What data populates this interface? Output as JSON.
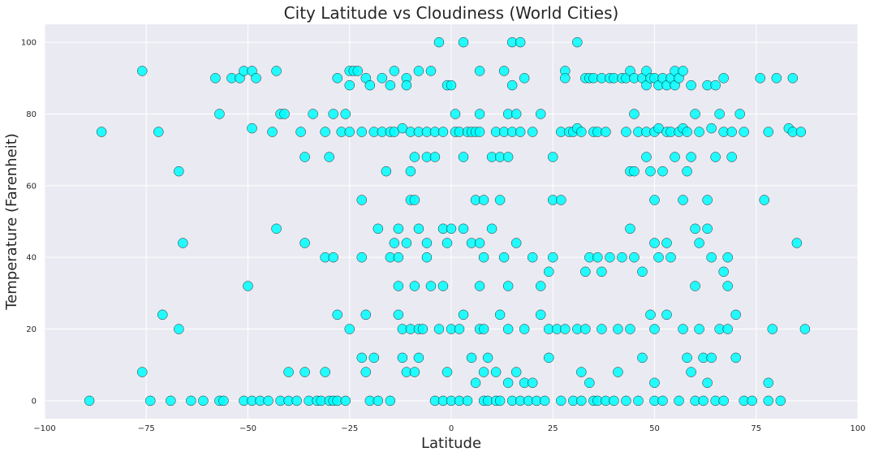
{
  "chart_data": {
    "type": "scatter",
    "title": "City Latitude vs Cloudiness (World Cities)",
    "xlabel": "Latitude",
    "ylabel": "Temperature (Farenheit)",
    "xlim": [
      -100,
      100
    ],
    "ylim": [
      -5,
      105
    ],
    "xticks": [
      -100,
      -75,
      -50,
      -25,
      0,
      25,
      50,
      75,
      100
    ],
    "yticks": [
      0,
      20,
      40,
      60,
      80,
      100
    ],
    "grid": true,
    "marker_color": "#00ffff",
    "marker_edge_color": "#000000",
    "background_color": "#eaeaf2",
    "points": [
      [
        -89,
        0
      ],
      [
        -86,
        75
      ],
      [
        -76,
        92
      ],
      [
        -76,
        8
      ],
      [
        -74,
        0
      ],
      [
        -72,
        75
      ],
      [
        -71,
        24
      ],
      [
        -69,
        0
      ],
      [
        -67,
        64
      ],
      [
        -67,
        20
      ],
      [
        -66,
        44
      ],
      [
        -64,
        0
      ],
      [
        -61,
        0
      ],
      [
        -58,
        90
      ],
      [
        -57,
        80
      ],
      [
        -57,
        0
      ],
      [
        -56,
        0
      ],
      [
        -54,
        90
      ],
      [
        -52,
        90
      ],
      [
        -51,
        92
      ],
      [
        -51,
        0
      ],
      [
        -50,
        32
      ],
      [
        -49,
        92
      ],
      [
        -49,
        76
      ],
      [
        -49,
        0
      ],
      [
        -48,
        90
      ],
      [
        -47,
        0
      ],
      [
        -45,
        0
      ],
      [
        -44,
        75
      ],
      [
        -43,
        92
      ],
      [
        -43,
        48
      ],
      [
        -42,
        80
      ],
      [
        -42,
        0
      ],
      [
        -41,
        80
      ],
      [
        -40,
        8
      ],
      [
        -40,
        0
      ],
      [
        -38,
        0
      ],
      [
        -37,
        75
      ],
      [
        -36,
        68
      ],
      [
        -36,
        44
      ],
      [
        -36,
        8
      ],
      [
        -35,
        0
      ],
      [
        -34,
        80
      ],
      [
        -33,
        0
      ],
      [
        -32,
        0
      ],
      [
        -31,
        75
      ],
      [
        -31,
        40
      ],
      [
        -31,
        8
      ],
      [
        -30,
        68
      ],
      [
        -30,
        0
      ],
      [
        -29,
        80
      ],
      [
        -29,
        40
      ],
      [
        -29,
        0
      ],
      [
        -28,
        90
      ],
      [
        -28,
        24
      ],
      [
        -28,
        0
      ],
      [
        -27,
        75
      ],
      [
        -26,
        80
      ],
      [
        -26,
        0
      ],
      [
        -25,
        92
      ],
      [
        -25,
        88
      ],
      [
        -25,
        75
      ],
      [
        -25,
        20
      ],
      [
        -24,
        92
      ],
      [
        -23,
        92
      ],
      [
        -22,
        75
      ],
      [
        -22,
        56
      ],
      [
        -22,
        40
      ],
      [
        -22,
        12
      ],
      [
        -21,
        90
      ],
      [
        -21,
        8
      ],
      [
        -21,
        24
      ],
      [
        -20,
        88
      ],
      [
        -20,
        0
      ],
      [
        -19,
        75
      ],
      [
        -19,
        12
      ],
      [
        -18,
        48
      ],
      [
        -18,
        0
      ],
      [
        -17,
        90
      ],
      [
        -17,
        75
      ],
      [
        -16,
        64
      ],
      [
        -15,
        88
      ],
      [
        -15,
        75
      ],
      [
        -15,
        40
      ],
      [
        -15,
        0
      ],
      [
        -14,
        92
      ],
      [
        -14,
        44
      ],
      [
        -14,
        75
      ],
      [
        -13,
        48
      ],
      [
        -13,
        40
      ],
      [
        -13,
        32
      ],
      [
        -13,
        24
      ],
      [
        -12,
        76
      ],
      [
        -12,
        20
      ],
      [
        -12,
        12
      ],
      [
        -11,
        90
      ],
      [
        -11,
        88
      ],
      [
        -11,
        44
      ],
      [
        -11,
        8
      ],
      [
        -10,
        75
      ],
      [
        -10,
        64
      ],
      [
        -10,
        56
      ],
      [
        -10,
        20
      ],
      [
        -9,
        68
      ],
      [
        -9,
        56
      ],
      [
        -9,
        32
      ],
      [
        -9,
        8
      ],
      [
        -8,
        92
      ],
      [
        -8,
        75
      ],
      [
        -8,
        48
      ],
      [
        -8,
        20
      ],
      [
        -8,
        12
      ],
      [
        -7,
        20
      ],
      [
        -6,
        75
      ],
      [
        -6,
        68
      ],
      [
        -6,
        44
      ],
      [
        -6,
        40
      ],
      [
        -5,
        92
      ],
      [
        -5,
        32
      ],
      [
        -4,
        75
      ],
      [
        -4,
        68
      ],
      [
        -4,
        0
      ],
      [
        -3,
        100
      ],
      [
        -3,
        20
      ],
      [
        -2,
        75
      ],
      [
        -2,
        48
      ],
      [
        -2,
        32
      ],
      [
        -2,
        0
      ],
      [
        -1,
        88
      ],
      [
        -1,
        44
      ],
      [
        -1,
        8
      ],
      [
        0,
        88
      ],
      [
        0,
        48
      ],
      [
        0,
        20
      ],
      [
        0,
        0
      ],
      [
        1,
        80
      ],
      [
        1,
        75
      ],
      [
        2,
        75
      ],
      [
        2,
        20
      ],
      [
        2,
        0
      ],
      [
        3,
        100
      ],
      [
        3,
        68
      ],
      [
        3,
        48
      ],
      [
        3,
        24
      ],
      [
        4,
        75
      ],
      [
        4,
        0
      ],
      [
        5,
        75
      ],
      [
        5,
        44
      ],
      [
        5,
        12
      ],
      [
        6,
        75
      ],
      [
        6,
        56
      ],
      [
        6,
        5
      ],
      [
        7,
        92
      ],
      [
        7,
        80
      ],
      [
        7,
        75
      ],
      [
        7,
        44
      ],
      [
        7,
        32
      ],
      [
        7,
        20
      ],
      [
        8,
        56
      ],
      [
        8,
        40
      ],
      [
        8,
        20
      ],
      [
        8,
        8
      ],
      [
        8,
        0
      ],
      [
        9,
        12
      ],
      [
        9,
        0
      ],
      [
        10,
        68
      ],
      [
        10,
        48
      ],
      [
        11,
        75
      ],
      [
        11,
        8
      ],
      [
        11,
        0
      ],
      [
        12,
        68
      ],
      [
        12,
        56
      ],
      [
        12,
        24
      ],
      [
        12,
        0
      ],
      [
        13,
        92
      ],
      [
        13,
        75
      ],
      [
        13,
        40
      ],
      [
        14,
        80
      ],
      [
        14,
        68
      ],
      [
        14,
        32
      ],
      [
        14,
        20
      ],
      [
        14,
        5
      ],
      [
        15,
        100
      ],
      [
        15,
        88
      ],
      [
        15,
        75
      ],
      [
        15,
        0
      ],
      [
        16,
        80
      ],
      [
        16,
        44
      ],
      [
        16,
        8
      ],
      [
        17,
        100
      ],
      [
        17,
        75
      ],
      [
        17,
        0
      ],
      [
        18,
        90
      ],
      [
        18,
        20
      ],
      [
        18,
        5
      ],
      [
        19,
        0
      ],
      [
        20,
        75
      ],
      [
        20,
        40
      ],
      [
        20,
        5
      ],
      [
        21,
        0
      ],
      [
        22,
        80
      ],
      [
        22,
        32
      ],
      [
        22,
        24
      ],
      [
        23,
        0
      ],
      [
        24,
        36
      ],
      [
        24,
        20
      ],
      [
        24,
        12
      ],
      [
        25,
        68
      ],
      [
        25,
        56
      ],
      [
        25,
        40
      ],
      [
        26,
        20
      ],
      [
        27,
        75
      ],
      [
        27,
        56
      ],
      [
        27,
        0
      ],
      [
        28,
        92
      ],
      [
        28,
        90
      ],
      [
        28,
        20
      ],
      [
        29,
        75
      ],
      [
        30,
        75
      ],
      [
        30,
        0
      ],
      [
        31,
        76
      ],
      [
        31,
        100
      ],
      [
        31,
        20
      ],
      [
        32,
        75
      ],
      [
        32,
        8
      ],
      [
        32,
        0
      ],
      [
        33,
        90
      ],
      [
        33,
        36
      ],
      [
        33,
        20
      ],
      [
        34,
        90
      ],
      [
        34,
        40
      ],
      [
        34,
        5
      ],
      [
        35,
        90
      ],
      [
        35,
        75
      ],
      [
        35,
        0
      ],
      [
        36,
        75
      ],
      [
        36,
        40
      ],
      [
        36,
        0
      ],
      [
        37,
        90
      ],
      [
        37,
        36
      ],
      [
        37,
        20
      ],
      [
        38,
        75
      ],
      [
        38,
        0
      ],
      [
        39,
        90
      ],
      [
        39,
        40
      ],
      [
        40,
        90
      ],
      [
        40,
        0
      ],
      [
        41,
        8
      ],
      [
        41,
        20
      ],
      [
        42,
        90
      ],
      [
        42,
        40
      ],
      [
        43,
        90
      ],
      [
        43,
        75
      ],
      [
        43,
        0
      ],
      [
        44,
        92
      ],
      [
        44,
        64
      ],
      [
        44,
        48
      ],
      [
        44,
        20
      ],
      [
        45,
        90
      ],
      [
        45,
        80
      ],
      [
        45,
        64
      ],
      [
        45,
        40
      ],
      [
        46,
        75
      ],
      [
        46,
        0
      ],
      [
        47,
        90
      ],
      [
        47,
        12
      ],
      [
        47,
        36
      ],
      [
        48,
        92
      ],
      [
        48,
        88
      ],
      [
        48,
        75
      ],
      [
        48,
        68
      ],
      [
        49,
        90
      ],
      [
        49,
        64
      ],
      [
        49,
        24
      ],
      [
        50,
        90
      ],
      [
        50,
        75
      ],
      [
        50,
        56
      ],
      [
        50,
        44
      ],
      [
        50,
        20
      ],
      [
        50,
        5
      ],
      [
        50,
        0
      ],
      [
        51,
        88
      ],
      [
        51,
        76
      ],
      [
        51,
        40
      ],
      [
        52,
        90
      ],
      [
        52,
        64
      ],
      [
        52,
        0
      ],
      [
        53,
        88
      ],
      [
        53,
        75
      ],
      [
        53,
        44
      ],
      [
        53,
        24
      ],
      [
        54,
        90
      ],
      [
        54,
        75
      ],
      [
        54,
        40
      ],
      [
        55,
        92
      ],
      [
        55,
        88
      ],
      [
        55,
        68
      ],
      [
        56,
        90
      ],
      [
        56,
        75
      ],
      [
        56,
        0
      ],
      [
        57,
        92
      ],
      [
        57,
        76
      ],
      [
        57,
        56
      ],
      [
        57,
        20
      ],
      [
        58,
        75
      ],
      [
        58,
        64
      ],
      [
        58,
        12
      ],
      [
        59,
        88
      ],
      [
        59,
        68
      ],
      [
        59,
        8
      ],
      [
        60,
        80
      ],
      [
        60,
        48
      ],
      [
        60,
        32
      ],
      [
        60,
        0
      ],
      [
        61,
        75
      ],
      [
        61,
        44
      ],
      [
        61,
        20
      ],
      [
        62,
        12
      ],
      [
        62,
        0
      ],
      [
        63,
        88
      ],
      [
        63,
        56
      ],
      [
        63,
        48
      ],
      [
        63,
        5
      ],
      [
        64,
        76
      ],
      [
        64,
        40
      ],
      [
        64,
        12
      ],
      [
        65,
        88
      ],
      [
        65,
        68
      ],
      [
        65,
        0
      ],
      [
        66,
        80
      ],
      [
        66,
        20
      ],
      [
        67,
        90
      ],
      [
        67,
        75
      ],
      [
        67,
        36
      ],
      [
        67,
        0
      ],
      [
        68,
        40
      ],
      [
        68,
        32
      ],
      [
        68,
        20
      ],
      [
        69,
        75
      ],
      [
        69,
        68
      ],
      [
        70,
        24
      ],
      [
        70,
        12
      ],
      [
        71,
        80
      ],
      [
        72,
        75
      ],
      [
        72,
        0
      ],
      [
        74,
        0
      ],
      [
        76,
        90
      ],
      [
        77,
        56
      ],
      [
        78,
        75
      ],
      [
        78,
        5
      ],
      [
        78,
        0
      ],
      [
        79,
        20
      ],
      [
        80,
        90
      ],
      [
        81,
        0
      ],
      [
        83,
        76
      ],
      [
        84,
        90
      ],
      [
        84,
        75
      ],
      [
        85,
        44
      ],
      [
        86,
        75
      ],
      [
        87,
        20
      ]
    ]
  }
}
